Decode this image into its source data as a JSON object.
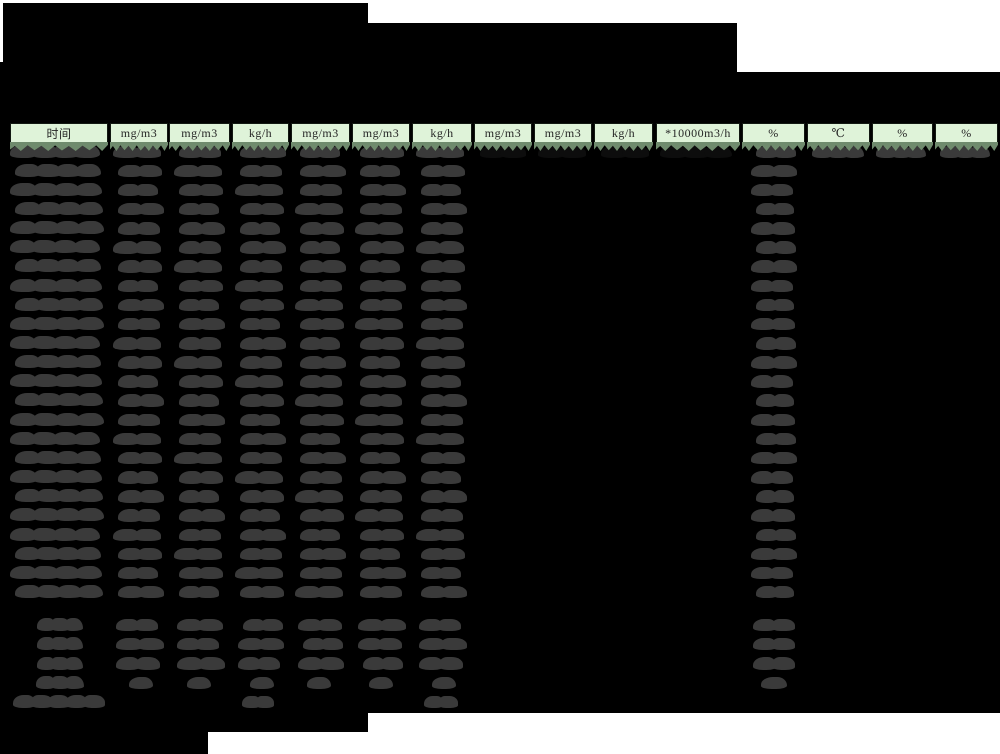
{
  "page": {
    "background": "#000000",
    "paper_color": "#ffffff"
  },
  "colors": {
    "header_fill": "#dff3d9",
    "header_border": "#121812",
    "header_shadow_strip": "#6f8b6d",
    "redacted_text_blob": "#3a3a3a",
    "redacted_text_blob_dark": "#0d0d0d"
  },
  "table": {
    "unit_row": [
      "时间",
      "mg/m3",
      "mg/m3",
      "kg/h",
      "mg/m3",
      "mg/m3",
      "kg/h",
      "mg/m3",
      "mg/m3",
      "kg/h",
      "*10000m3/h",
      "%",
      "℃",
      "%",
      "%"
    ],
    "data_rows_count": 24,
    "summary_rows_count": 5,
    "redacted": true
  }
}
